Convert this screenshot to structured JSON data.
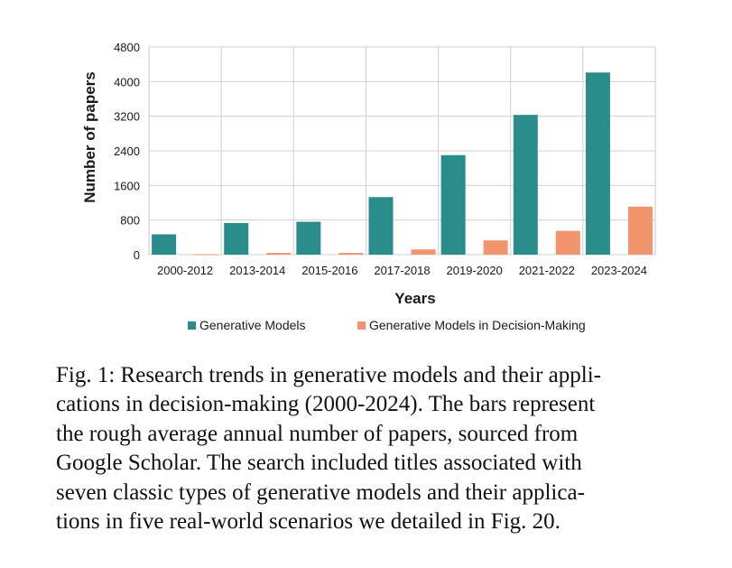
{
  "chart_data": {
    "type": "bar",
    "xlabel": "Years",
    "ylabel": "Number of papers",
    "categories": [
      "2000-2012",
      "2013-2014",
      "2015-2016",
      "2017-2018",
      "2019-2020",
      "2021-2022",
      "2023-2024"
    ],
    "series": [
      {
        "name": "Generative Models",
        "color": "#2b8c8c",
        "values": [
          470,
          730,
          760,
          1330,
          2300,
          3230,
          4210
        ]
      },
      {
        "name": "Generative Models in Decision-Making",
        "color": "#f2956e",
        "values": [
          10,
          40,
          40,
          120,
          330,
          550,
          1110
        ]
      }
    ],
    "ylim": [
      0,
      4800
    ],
    "yticks": [
      "0",
      "800",
      "1600",
      "2400",
      "3200",
      "4000",
      "4800"
    ],
    "grid": true,
    "legend": "bottom"
  },
  "caption": {
    "lines": [
      "Fig. 1: Research trends in generative models and their appli-",
      "cations in decision-making (2000-2024). The bars represent",
      "the rough average annual number of papers, sourced from",
      "Google Scholar. The search included titles associated with",
      "seven classic types of generative models and their applica-",
      "tions in five real-world scenarios we detailed in Fig. 20."
    ]
  }
}
